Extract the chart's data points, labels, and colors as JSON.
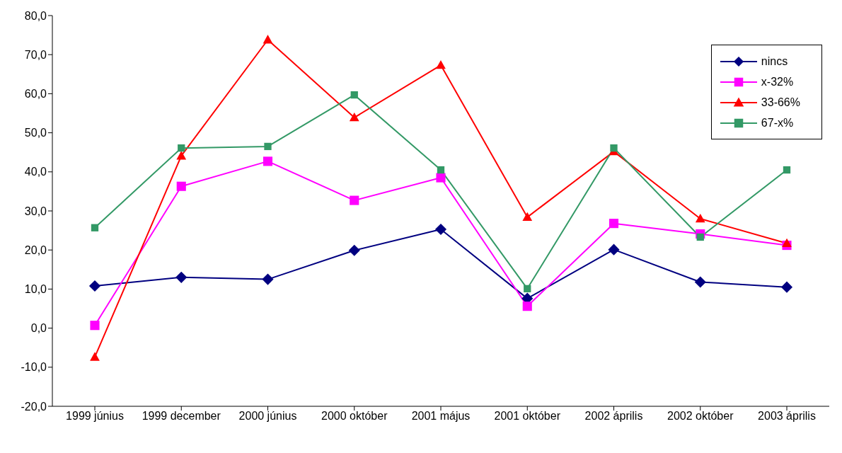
{
  "chart_data": {
    "type": "line",
    "categories": [
      "1999 június",
      "1999 december",
      "2000 június",
      "2000 október",
      "2001 május",
      "2001 október",
      "2002 április",
      "2002 október",
      "2003 április"
    ],
    "series": [
      {
        "name": "nincs",
        "color": "#000080",
        "marker": "diamond",
        "values": [
          10.8,
          13.0,
          12.5,
          19.9,
          25.3,
          7.6,
          20.1,
          11.8,
          10.5
        ]
      },
      {
        "name": "x-32%",
        "color": "#ff00ff",
        "marker": "square",
        "values": [
          0.7,
          36.3,
          42.7,
          32.7,
          38.5,
          5.6,
          26.8,
          24.1,
          21.2
        ]
      },
      {
        "name": "33-66%",
        "color": "#ff0000",
        "marker": "triangle",
        "values": [
          -7.4,
          44.1,
          73.8,
          53.9,
          67.3,
          28.4,
          45.2,
          28.0,
          21.7
        ]
      },
      {
        "name": "67-x%",
        "color": "#339966",
        "marker": "square",
        "values": [
          25.7,
          46.1,
          46.5,
          59.7,
          40.5,
          10.1,
          46.1,
          23.3,
          40.5
        ]
      }
    ],
    "ylim": [
      -20,
      80
    ],
    "yticks": [
      {
        "value": -20,
        "label": "-20,0"
      },
      {
        "value": -10,
        "label": "-10,0"
      },
      {
        "value": 0,
        "label": "0,0"
      },
      {
        "value": 10,
        "label": "10,0"
      },
      {
        "value": 20,
        "label": "20,0"
      },
      {
        "value": 30,
        "label": "30,0"
      },
      {
        "value": 40,
        "label": "40,0"
      },
      {
        "value": 50,
        "label": "50,0"
      },
      {
        "value": 60,
        "label": "60,0"
      },
      {
        "value": 70,
        "label": "70,0"
      },
      {
        "value": 80,
        "label": "80,0"
      }
    ],
    "grid": false,
    "legend": "top right",
    "line_style": "solid"
  }
}
